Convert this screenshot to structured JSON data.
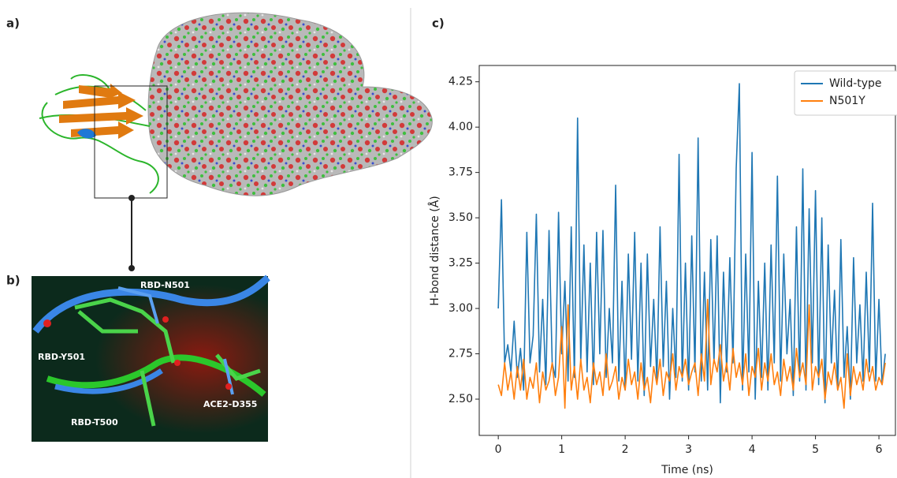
{
  "panels": {
    "a": {
      "label": "a)"
    },
    "b": {
      "label": "b)",
      "annotations": [
        "RBD-N501",
        "RBD-Y501",
        "RBD-T500",
        "ACE2-D355"
      ]
    },
    "c": {
      "label": "c)"
    }
  },
  "chart_data": {
    "type": "line",
    "xlabel": "Time (ns)",
    "ylabel": "H-bond distance (Å)",
    "x": [
      0,
      0.05,
      0.1,
      0.15,
      0.2,
      0.25,
      0.3,
      0.35,
      0.4,
      0.45,
      0.5,
      0.55,
      0.6,
      0.65,
      0.7,
      0.75,
      0.8,
      0.85,
      0.9,
      0.95,
      1,
      1.05,
      1.1,
      1.15,
      1.2,
      1.25,
      1.3,
      1.35,
      1.4,
      1.45,
      1.5,
      1.55,
      1.6,
      1.65,
      1.7,
      1.75,
      1.8,
      1.85,
      1.9,
      1.95,
      2,
      2.05,
      2.1,
      2.15,
      2.2,
      2.25,
      2.3,
      2.35,
      2.4,
      2.45,
      2.5,
      2.55,
      2.6,
      2.65,
      2.7,
      2.75,
      2.8,
      2.85,
      2.9,
      2.95,
      3,
      3.05,
      3.1,
      3.15,
      3.2,
      3.25,
      3.3,
      3.35,
      3.4,
      3.45,
      3.5,
      3.55,
      3.6,
      3.65,
      3.7,
      3.75,
      3.8,
      3.85,
      3.9,
      3.95,
      4,
      4.05,
      4.1,
      4.15,
      4.2,
      4.25,
      4.3,
      4.35,
      4.4,
      4.45,
      4.5,
      4.55,
      4.6,
      4.65,
      4.7,
      4.75,
      4.8,
      4.85,
      4.9,
      4.95,
      5,
      5.05,
      5.1,
      5.15,
      5.2,
      5.25,
      5.3,
      5.35,
      5.4,
      5.45,
      5.5,
      5.55,
      5.6,
      5.65,
      5.7,
      5.75,
      5.8,
      5.85,
      5.9,
      5.95,
      6,
      6.05,
      6.1
    ],
    "series": [
      {
        "name": "Wild-type",
        "color": "#1f77b4",
        "values": [
          3.0,
          3.6,
          2.7,
          2.8,
          2.65,
          2.93,
          2.62,
          2.78,
          2.55,
          3.42,
          2.7,
          2.85,
          3.52,
          2.65,
          3.05,
          2.58,
          3.43,
          2.7,
          2.62,
          3.53,
          2.75,
          3.15,
          2.6,
          3.45,
          2.62,
          4.05,
          2.7,
          3.35,
          2.65,
          3.25,
          2.58,
          3.42,
          2.75,
          3.43,
          2.62,
          3.0,
          2.7,
          3.68,
          2.6,
          3.15,
          2.55,
          3.3,
          2.72,
          3.42,
          2.6,
          3.25,
          2.52,
          3.3,
          2.68,
          3.05,
          2.6,
          3.45,
          2.68,
          3.15,
          2.5,
          3.0,
          2.62,
          3.85,
          2.6,
          3.25,
          2.55,
          3.4,
          2.65,
          3.94,
          2.6,
          3.2,
          2.55,
          3.38,
          2.7,
          3.4,
          2.48,
          3.2,
          2.65,
          3.28,
          2.7,
          3.77,
          4.24,
          2.55,
          3.3,
          2.65,
          3.86,
          2.5,
          3.15,
          2.62,
          3.25,
          2.55,
          3.35,
          2.7,
          3.73,
          2.6,
          3.3,
          2.75,
          3.05,
          2.52,
          3.45,
          2.6,
          3.77,
          2.55,
          3.55,
          2.7,
          3.65,
          2.58,
          3.5,
          2.48,
          3.35,
          2.7,
          3.1,
          2.55,
          3.38,
          2.62,
          2.9,
          2.5,
          3.28,
          2.7,
          3.02,
          2.6,
          3.2,
          2.65,
          3.58,
          2.6,
          3.05,
          2.58,
          2.75
        ]
      },
      {
        "name": "N501Y",
        "color": "#ff7f0e",
        "values": [
          2.58,
          2.52,
          2.7,
          2.55,
          2.65,
          2.5,
          2.68,
          2.55,
          2.72,
          2.5,
          2.62,
          2.56,
          2.7,
          2.48,
          2.65,
          2.55,
          2.6,
          2.7,
          2.52,
          2.62,
          2.9,
          2.45,
          3.02,
          2.55,
          2.68,
          2.5,
          2.72,
          2.55,
          2.62,
          2.48,
          2.7,
          2.58,
          2.65,
          2.52,
          2.75,
          2.55,
          2.6,
          2.68,
          2.5,
          2.62,
          2.55,
          2.72,
          2.58,
          2.65,
          2.5,
          2.7,
          2.55,
          2.62,
          2.48,
          2.68,
          2.58,
          2.72,
          2.52,
          2.65,
          2.6,
          2.75,
          2.55,
          2.68,
          2.62,
          2.72,
          2.58,
          2.65,
          2.7,
          2.52,
          2.75,
          2.6,
          3.05,
          2.58,
          2.72,
          2.65,
          2.8,
          2.6,
          2.7,
          2.55,
          2.78,
          2.62,
          2.7,
          2.58,
          2.75,
          2.52,
          2.68,
          2.62,
          2.78,
          2.55,
          2.7,
          2.6,
          2.75,
          2.58,
          2.65,
          2.52,
          2.72,
          2.6,
          2.68,
          2.55,
          2.78,
          2.62,
          2.7,
          2.58,
          3.02,
          2.55,
          2.68,
          2.62,
          2.72,
          2.5,
          2.65,
          2.58,
          2.7,
          2.55,
          2.62,
          2.45,
          2.75,
          2.52,
          2.68,
          2.58,
          2.65,
          2.55,
          2.72,
          2.6,
          2.68,
          2.55,
          2.62,
          2.58,
          2.7
        ]
      }
    ],
    "xlim": [
      -0.3,
      6.26
    ],
    "ylim": [
      2.3,
      4.34
    ],
    "xticks": [
      0,
      1,
      2,
      3,
      4,
      5,
      6
    ],
    "yticks": [
      {
        "value": 2.5,
        "label": "2.50"
      },
      {
        "value": 2.75,
        "label": "2.75"
      },
      {
        "value": 3,
        "label": "3.00"
      },
      {
        "value": 3.25,
        "label": "3.25"
      },
      {
        "value": 3.5,
        "label": "3.50"
      },
      {
        "value": 3.75,
        "label": "3.75"
      },
      {
        "value": 4,
        "label": "4.00"
      },
      {
        "value": 4.25,
        "label": "4.25"
      }
    ],
    "legend": "upper right",
    "grid": false
  }
}
